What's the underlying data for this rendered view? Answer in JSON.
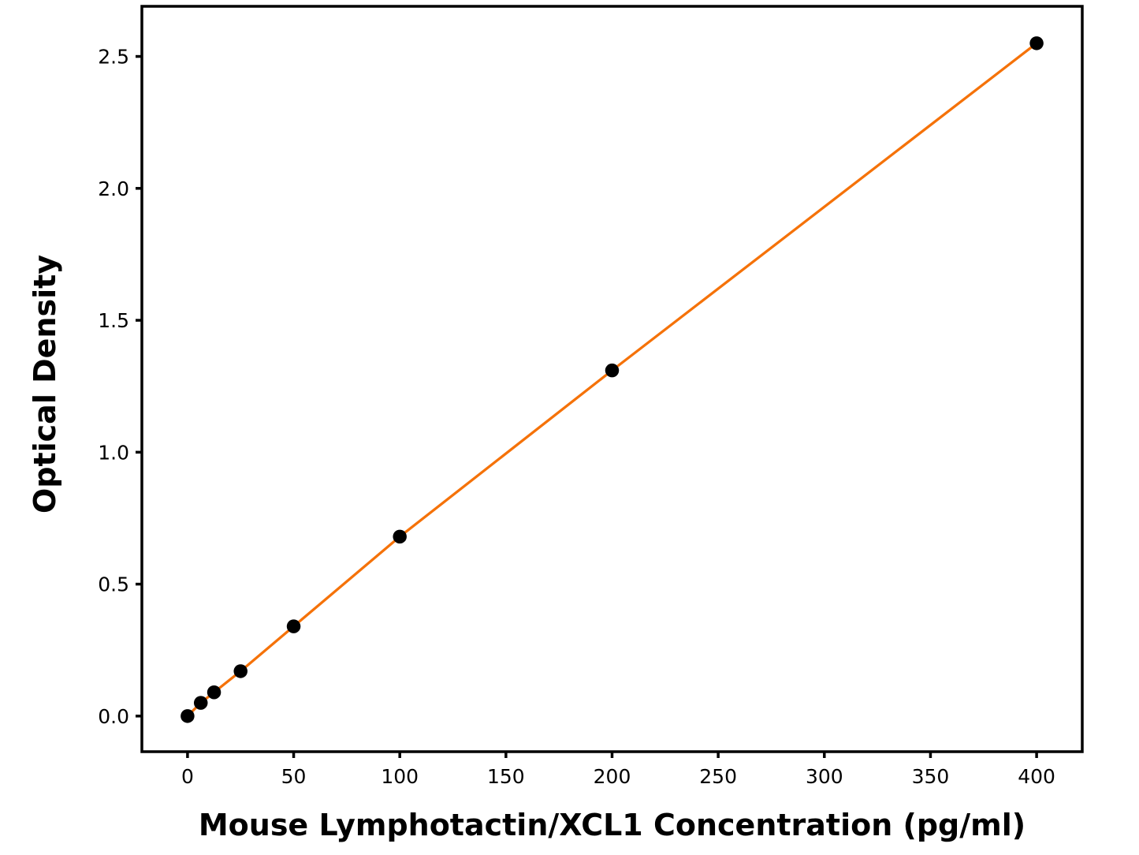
{
  "figure": {
    "background_color": "#ffffff"
  },
  "chart_data": {
    "type": "line",
    "title": "",
    "xlabel": "Mouse Lymphotactin/XCL1 Concentration (pg/ml)",
    "ylabel": "Optical Density",
    "series": [
      {
        "name": "standard-curve",
        "x": [
          0,
          6.25,
          12.5,
          25,
          50,
          100,
          200,
          400
        ],
        "y": [
          0.0,
          0.05,
          0.09,
          0.17,
          0.34,
          0.68,
          1.31,
          2.55
        ],
        "line_color": "#f57209",
        "line_width": 3.3,
        "marker": "circle",
        "marker_color": "#000000",
        "marker_radius": 8.75
      }
    ],
    "xticks": [
      0,
      50,
      100,
      150,
      200,
      250,
      300,
      350,
      400
    ],
    "xtick_labels": [
      "0",
      "50",
      "100",
      "150",
      "200",
      "250",
      "300",
      "350",
      "400"
    ],
    "yticks": [
      0,
      0.5,
      1.0,
      1.5,
      2.0,
      2.5
    ],
    "ytick_labels": [
      "0.0",
      "0.5",
      "1.0",
      "1.5",
      "2.0",
      "2.5"
    ],
    "xlim": [
      -21.5,
      421.5
    ],
    "ylim": [
      -0.135,
      2.69
    ],
    "grid": false,
    "legend_position": "none",
    "axis_color": "#000000",
    "tick_direction": "out"
  }
}
